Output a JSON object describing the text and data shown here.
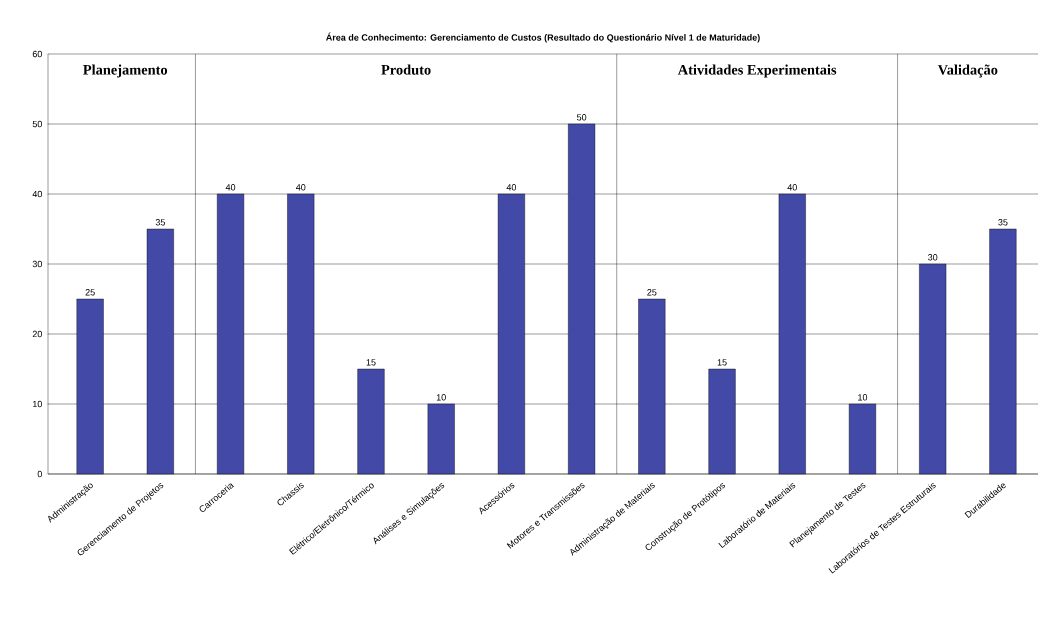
{
  "chart_data": {
    "type": "bar",
    "title": "Área de Conhecimento: Gerenciamento de Custos (Resultado do Questionário Nível 1 de Maturidade)",
    "categories": [
      "Administração",
      "Gerenciamento de Projetos",
      "Carroceria",
      "Chassis",
      "Elétrico/Eletrônico/Térmico",
      "Análises e Simulações",
      "Acessórios",
      "Motores e Transmissões",
      "Administração de Materiais",
      "Construção de Protótipos",
      "Laboratório de Materiais",
      "Planejamento de Testes",
      "Laboratórios de Testes Estruturais",
      "Durabilidade"
    ],
    "values": [
      25,
      35,
      40,
      40,
      15,
      10,
      40,
      50,
      25,
      15,
      40,
      10,
      30,
      35
    ],
    "color": "#4349a6",
    "ylim": [
      0,
      60
    ],
    "yticks": [
      0,
      10,
      20,
      30,
      40,
      50,
      60
    ],
    "grid": "y",
    "data_labels": true,
    "annotations": [
      "Planejamento",
      "Produto",
      "Atividades Experimentais",
      "Validação"
    ]
  }
}
